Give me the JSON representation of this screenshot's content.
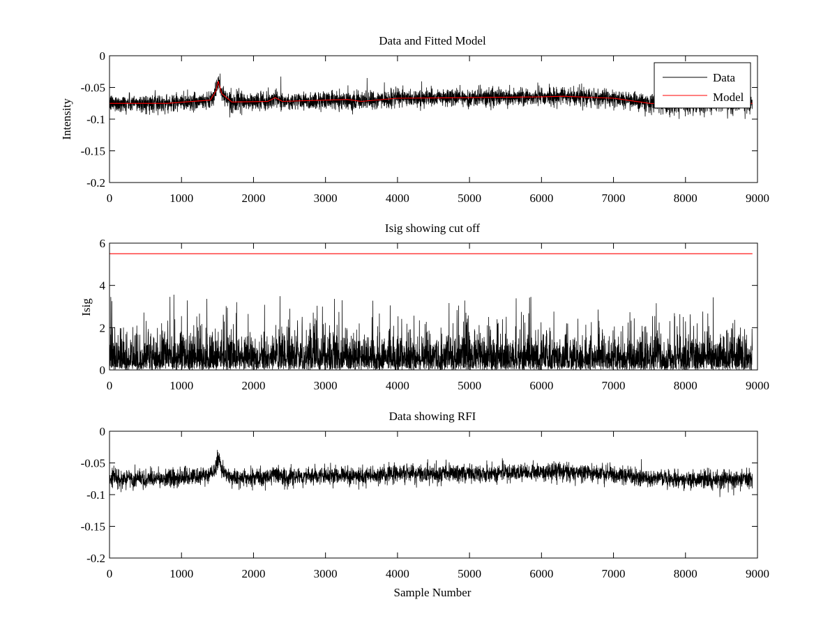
{
  "figure": {
    "background": "#ffffff"
  },
  "chart_data": [
    {
      "type": "line",
      "title": "Data and Fitted Model",
      "xlabel": "",
      "ylabel": "Intensity",
      "xlim": [
        0,
        9000
      ],
      "ylim": [
        -0.2,
        0
      ],
      "xticks": [
        0,
        1000,
        2000,
        3000,
        4000,
        5000,
        6000,
        7000,
        8000,
        9000
      ],
      "yticks": [
        0,
        -0.05,
        -0.1,
        -0.15,
        -0.2
      ],
      "ytick_labels": [
        "0",
        "-0.05",
        "-0.1",
        "-0.15",
        "-0.2"
      ],
      "grid": false,
      "legend": {
        "placement": "top-right",
        "entries": [
          "Data",
          "Model"
        ]
      },
      "series": [
        {
          "name": "Data",
          "color": "#000000",
          "kind": "noisy-signal",
          "n_samples": 8930,
          "noise_sd": 0.007,
          "baseline_x": [
            0,
            800,
            1400,
            1480,
            1510,
            1560,
            1700,
            2200,
            2270,
            2300,
            2400,
            3300,
            3500,
            4000,
            5000,
            6000,
            6300,
            7000,
            7500,
            8000,
            8930
          ],
          "baseline_y": [
            -0.075,
            -0.075,
            -0.07,
            -0.055,
            -0.04,
            -0.06,
            -0.073,
            -0.072,
            -0.068,
            -0.066,
            -0.072,
            -0.069,
            -0.072,
            -0.067,
            -0.066,
            -0.065,
            -0.064,
            -0.067,
            -0.075,
            -0.077,
            -0.075
          ]
        },
        {
          "name": "Model",
          "color": "#ff0000",
          "x": [
            0,
            800,
            1400,
            1480,
            1510,
            1560,
            1700,
            2200,
            2270,
            2300,
            2400,
            3300,
            3500,
            4000,
            5000,
            6000,
            6300,
            7000,
            7500,
            8000,
            8930
          ],
          "y": [
            -0.075,
            -0.075,
            -0.07,
            -0.055,
            -0.04,
            -0.06,
            -0.073,
            -0.072,
            -0.068,
            -0.066,
            -0.072,
            -0.069,
            -0.072,
            -0.067,
            -0.066,
            -0.065,
            -0.064,
            -0.067,
            -0.075,
            -0.077,
            -0.075
          ]
        }
      ]
    },
    {
      "type": "line",
      "title": "Isig showing cut off",
      "xlabel": "",
      "ylabel": "Isig",
      "xlim": [
        0,
        9000
      ],
      "ylim": [
        0,
        6
      ],
      "xticks": [
        0,
        1000,
        2000,
        3000,
        4000,
        5000,
        6000,
        7000,
        8000,
        9000
      ],
      "yticks": [
        0,
        2,
        4,
        6
      ],
      "ytick_labels": [
        "0",
        "2",
        "4",
        "6"
      ],
      "grid": false,
      "series": [
        {
          "color": "#000000",
          "kind": "abs-noise",
          "n_samples": 8930,
          "typical_max": 3.6
        },
        {
          "color": "#ff0000",
          "kind": "cutoff",
          "x": [
            0,
            8930
          ],
          "y": [
            5.5,
            5.5
          ]
        }
      ]
    },
    {
      "type": "line",
      "title": "Data showing RFI",
      "xlabel": "Sample Number",
      "ylabel": "",
      "xlim": [
        0,
        9000
      ],
      "ylim": [
        -0.2,
        0
      ],
      "xticks": [
        0,
        1000,
        2000,
        3000,
        4000,
        5000,
        6000,
        7000,
        8000,
        9000
      ],
      "yticks": [
        0,
        -0.05,
        -0.1,
        -0.15,
        -0.2
      ],
      "ytick_labels": [
        "0",
        "-0.05",
        "-0.1",
        "-0.15",
        "-0.2"
      ],
      "grid": false,
      "series": [
        {
          "color": "#000000",
          "kind": "noisy-signal",
          "n_samples": 8930,
          "noise_sd": 0.007,
          "baseline_x": [
            0,
            800,
            1400,
            1480,
            1510,
            1560,
            1700,
            2200,
            2270,
            2300,
            2400,
            3300,
            3500,
            4000,
            5000,
            6000,
            6300,
            7000,
            7500,
            8000,
            8930
          ],
          "baseline_y": [
            -0.075,
            -0.075,
            -0.07,
            -0.055,
            -0.04,
            -0.06,
            -0.073,
            -0.072,
            -0.068,
            -0.066,
            -0.072,
            -0.069,
            -0.072,
            -0.067,
            -0.066,
            -0.065,
            -0.064,
            -0.067,
            -0.075,
            -0.077,
            -0.075
          ]
        }
      ]
    }
  ]
}
